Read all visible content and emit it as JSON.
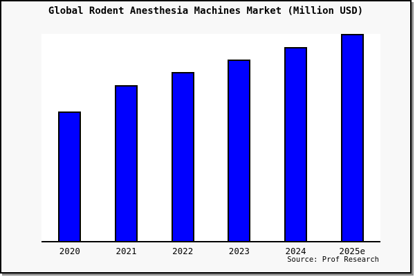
{
  "window": {
    "background": "#f8f8f8",
    "frame_border_color": "#000000",
    "frame_shadow_color": "#8f8f8f",
    "plot_background": "#ffffff",
    "axis_color": "#000000",
    "text_color": "#000000"
  },
  "source": "Source: Prof Research",
  "chart_data": {
    "type": "bar",
    "title": "Global Rodent Anesthesia Machines Market (Million USD)",
    "categories": [
      "2020",
      "2021",
      "2022",
      "2023",
      "2024",
      "2025e"
    ],
    "values": [
      62.7,
      75.2,
      81.5,
      87.7,
      93.7,
      100
    ],
    "units": "relative index (2025e = 100); no numeric y-axis shown in chart",
    "xlabel": "",
    "ylabel": "",
    "ylim": [
      0,
      100
    ],
    "grid": false,
    "legend": "none",
    "y_axis_ticks": "none",
    "bar_color": "#0000ff",
    "bar_border_color": "#000000",
    "annotations": [
      "Source: Prof Research"
    ]
  }
}
